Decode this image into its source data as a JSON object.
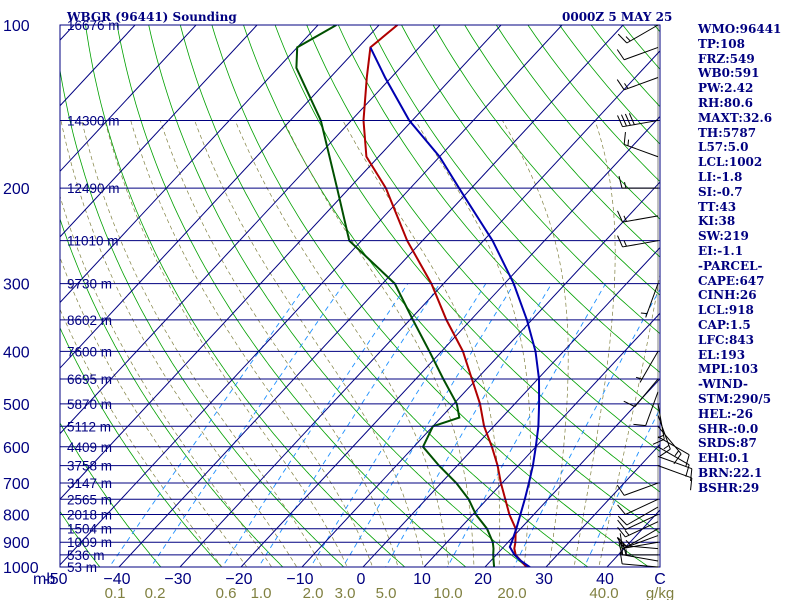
{
  "header": {
    "station": "WBGR (96441) Sounding",
    "time": "0000Z  5 MAY 25"
  },
  "indices": [
    "WMO:96441",
    "TP:108",
    "FRZ:549",
    "WB0:591",
    "PW:2.42",
    "RH:80.6",
    "MAXT:32.6",
    "TH:5787",
    "L57:5.0",
    "LCL:1002",
    "LI:-1.8",
    "SI:-0.7",
    "TT:43",
    "KI:38",
    "SW:219",
    "EI:-1.1",
    "-PARCEL-",
    "CAPE:647",
    "CINH:26",
    "LCL:918",
    "CAP:1.5",
    "LFC:843",
    "EL:193",
    "MPL:103",
    "-WIND-",
    "STM:290/5",
    "HEL:-26",
    "SHR-:0.0",
    "SRDS:87",
    "EHI:0.1",
    "BRN:22.1",
    "BSHR:29"
  ],
  "colors": {
    "isobar": "#000080",
    "isotherm": "#000080",
    "dry_adiabat": "#00a000",
    "moist_adiabat": "#808040",
    "mixing_ratio": "#1e90ff",
    "temperature": "#b00000",
    "dewpoint": "#005000",
    "parcel": "#0000b0",
    "wind": "#000000"
  },
  "chart_data": {
    "type": "line",
    "title": "WBGR (96441) Sounding",
    "subtitle": "0000Z  5 MAY 25",
    "xlabel": "C",
    "ylabel": "mb",
    "xlim": [
      -50,
      50
    ],
    "ylim": [
      1000,
      100
    ],
    "pressure_ticks": [
      "100",
      "200",
      "300",
      "400",
      "500",
      "600",
      "700",
      "800",
      "900",
      "1000"
    ],
    "height_labels": [
      {
        "p": 100,
        "label": "16676 m"
      },
      {
        "p": 150,
        "label": "14300 m"
      },
      {
        "p": 200,
        "label": "12490 m"
      },
      {
        "p": 250,
        "label": "11010 m"
      },
      {
        "p": 300,
        "label": "9730 m"
      },
      {
        "p": 350,
        "label": "8602 m"
      },
      {
        "p": 400,
        "label": "7600 m"
      },
      {
        "p": 450,
        "label": "6695 m"
      },
      {
        "p": 500,
        "label": "5870 m"
      },
      {
        "p": 550,
        "label": "5112 m"
      },
      {
        "p": 600,
        "label": "4409 m"
      },
      {
        "p": 650,
        "label": "3758 m"
      },
      {
        "p": 700,
        "label": "3147 m"
      },
      {
        "p": 750,
        "label": "2565 m"
      },
      {
        "p": 800,
        "label": "2018 m"
      },
      {
        "p": 850,
        "label": "1504 m"
      },
      {
        "p": 900,
        "label": "1009 m"
      },
      {
        "p": 950,
        "label": "536 m"
      },
      {
        "p": 1000,
        "label": "53 m"
      }
    ],
    "temp_ticks": [
      -50,
      -40,
      -30,
      -20,
      -10,
      0,
      10,
      20,
      30,
      40
    ],
    "temp_tick_labels": [
      "-50",
      "−40",
      "−30",
      "−20",
      "−10",
      "0",
      "10",
      "20",
      "30",
      "40"
    ],
    "x_unit_label": "C",
    "mixing_ratio_ticks": [
      "0.1",
      "0.2",
      "0.6",
      "1.0",
      "2.0",
      "3.0",
      "5.0",
      "10.0",
      "20.0",
      "40.0"
    ],
    "mixing_ratio_values": [
      0.1,
      0.2,
      0.6,
      1.0,
      2.0,
      3.0,
      5.0,
      10.0,
      20.0,
      40.0
    ],
    "mixing_ratio_unit": "g/kg",
    "series": [
      {
        "key": "temperature",
        "points": [
          [
            1010,
            27.6
          ],
          [
            1000,
            26.8
          ],
          [
            975,
            25.0
          ],
          [
            950,
            23.2
          ],
          [
            925,
            22.0
          ],
          [
            900,
            21.2
          ],
          [
            850,
            19.2
          ],
          [
            800,
            16.0
          ],
          [
            750,
            13.0
          ],
          [
            700,
            9.8
          ],
          [
            650,
            6.6
          ],
          [
            600,
            2.8
          ],
          [
            550,
            -1.6
          ],
          [
            500,
            -5.7
          ],
          [
            450,
            -10.8
          ],
          [
            400,
            -16.5
          ],
          [
            350,
            -24.0
          ],
          [
            300,
            -32.0
          ],
          [
            250,
            -42.5
          ],
          [
            200,
            -54.0
          ],
          [
            175,
            -62.0
          ],
          [
            150,
            -68.0
          ],
          [
            125,
            -74.0
          ],
          [
            110,
            -78.0
          ],
          [
            100,
            -77.0
          ]
        ]
      },
      {
        "key": "dewpoint",
        "points": [
          [
            1010,
            21.6
          ],
          [
            1000,
            21.5
          ],
          [
            975,
            20.5
          ],
          [
            950,
            19.5
          ],
          [
            925,
            18.6
          ],
          [
            900,
            17.5
          ],
          [
            850,
            14.5
          ],
          [
            800,
            10.5
          ],
          [
            750,
            7.0
          ],
          [
            700,
            2.5
          ],
          [
            650,
            -3.0
          ],
          [
            600,
            -8.5
          ],
          [
            550,
            -10.0
          ],
          [
            530,
            -7.0
          ],
          [
            500,
            -9.5
          ],
          [
            450,
            -15.5
          ],
          [
            400,
            -22.0
          ],
          [
            350,
            -29.5
          ],
          [
            300,
            -38.0
          ],
          [
            250,
            -52.0
          ],
          [
            200,
            -62.0
          ],
          [
            150,
            -75.0
          ],
          [
            120,
            -87.0
          ],
          [
            110,
            -90.0
          ],
          [
            100,
            -87.0
          ]
        ]
      },
      {
        "key": "parcel",
        "points": [
          [
            1002,
            27.5
          ],
          [
            975,
            25.0
          ],
          [
            950,
            23.0
          ],
          [
            918,
            21.0
          ],
          [
            900,
            20.6
          ],
          [
            850,
            19.3
          ],
          [
            800,
            17.8
          ],
          [
            750,
            16.2
          ],
          [
            700,
            14.4
          ],
          [
            650,
            12.4
          ],
          [
            600,
            10.0
          ],
          [
            550,
            7.3
          ],
          [
            500,
            4.0
          ],
          [
            450,
            0.2
          ],
          [
            400,
            -4.6
          ],
          [
            350,
            -10.8
          ],
          [
            300,
            -18.5
          ],
          [
            250,
            -28.5
          ],
          [
            200,
            -42.0
          ],
          [
            175,
            -50.0
          ],
          [
            150,
            -60.5
          ],
          [
            125,
            -71.0
          ],
          [
            110,
            -78.0
          ]
        ]
      }
    ],
    "wind_barbs": [
      {
        "p": 1000,
        "dir": 275,
        "kt": 8
      },
      {
        "p": 975,
        "dir": 280,
        "kt": 15
      },
      {
        "p": 950,
        "dir": 270,
        "kt": 20
      },
      {
        "p": 925,
        "dir": 275,
        "kt": 10
      },
      {
        "p": 900,
        "dir": 260,
        "kt": 10
      },
      {
        "p": 875,
        "dir": 250,
        "kt": 10
      },
      {
        "p": 850,
        "dir": 240,
        "kt": 15
      },
      {
        "p": 825,
        "dir": 245,
        "kt": 15
      },
      {
        "p": 800,
        "dir": 245,
        "kt": 10
      },
      {
        "p": 775,
        "dir": 240,
        "kt": 10
      },
      {
        "p": 750,
        "dir": 245,
        "kt": 10
      },
      {
        "p": 700,
        "dir": 250,
        "kt": 10
      },
      {
        "p": 650,
        "dir": 110,
        "kt": 10
      },
      {
        "p": 625,
        "dir": 110,
        "kt": 10
      },
      {
        "p": 600,
        "dir": 120,
        "kt": 10
      },
      {
        "p": 575,
        "dir": 120,
        "kt": 10
      },
      {
        "p": 550,
        "dir": 140,
        "kt": 15
      },
      {
        "p": 525,
        "dir": 160,
        "kt": 15
      },
      {
        "p": 500,
        "dir": 170,
        "kt": 15
      },
      {
        "p": 475,
        "dir": 200,
        "kt": 10
      },
      {
        "p": 450,
        "dir": 220,
        "kt": 10
      },
      {
        "p": 400,
        "dir": 210,
        "kt": 5
      },
      {
        "p": 300,
        "dir": 200,
        "kt": 5
      },
      {
        "p": 250,
        "dir": 260,
        "kt": 15
      },
      {
        "p": 225,
        "dir": 260,
        "kt": 15
      },
      {
        "p": 200,
        "dir": 270,
        "kt": 15
      },
      {
        "p": 175,
        "dir": 290,
        "kt": 15
      },
      {
        "p": 150,
        "dir": 260,
        "kt": 40
      },
      {
        "p": 125,
        "dir": 250,
        "kt": 15
      },
      {
        "p": 110,
        "dir": 250,
        "kt": 10
      },
      {
        "p": 100,
        "dir": 240,
        "kt": 15
      }
    ]
  }
}
